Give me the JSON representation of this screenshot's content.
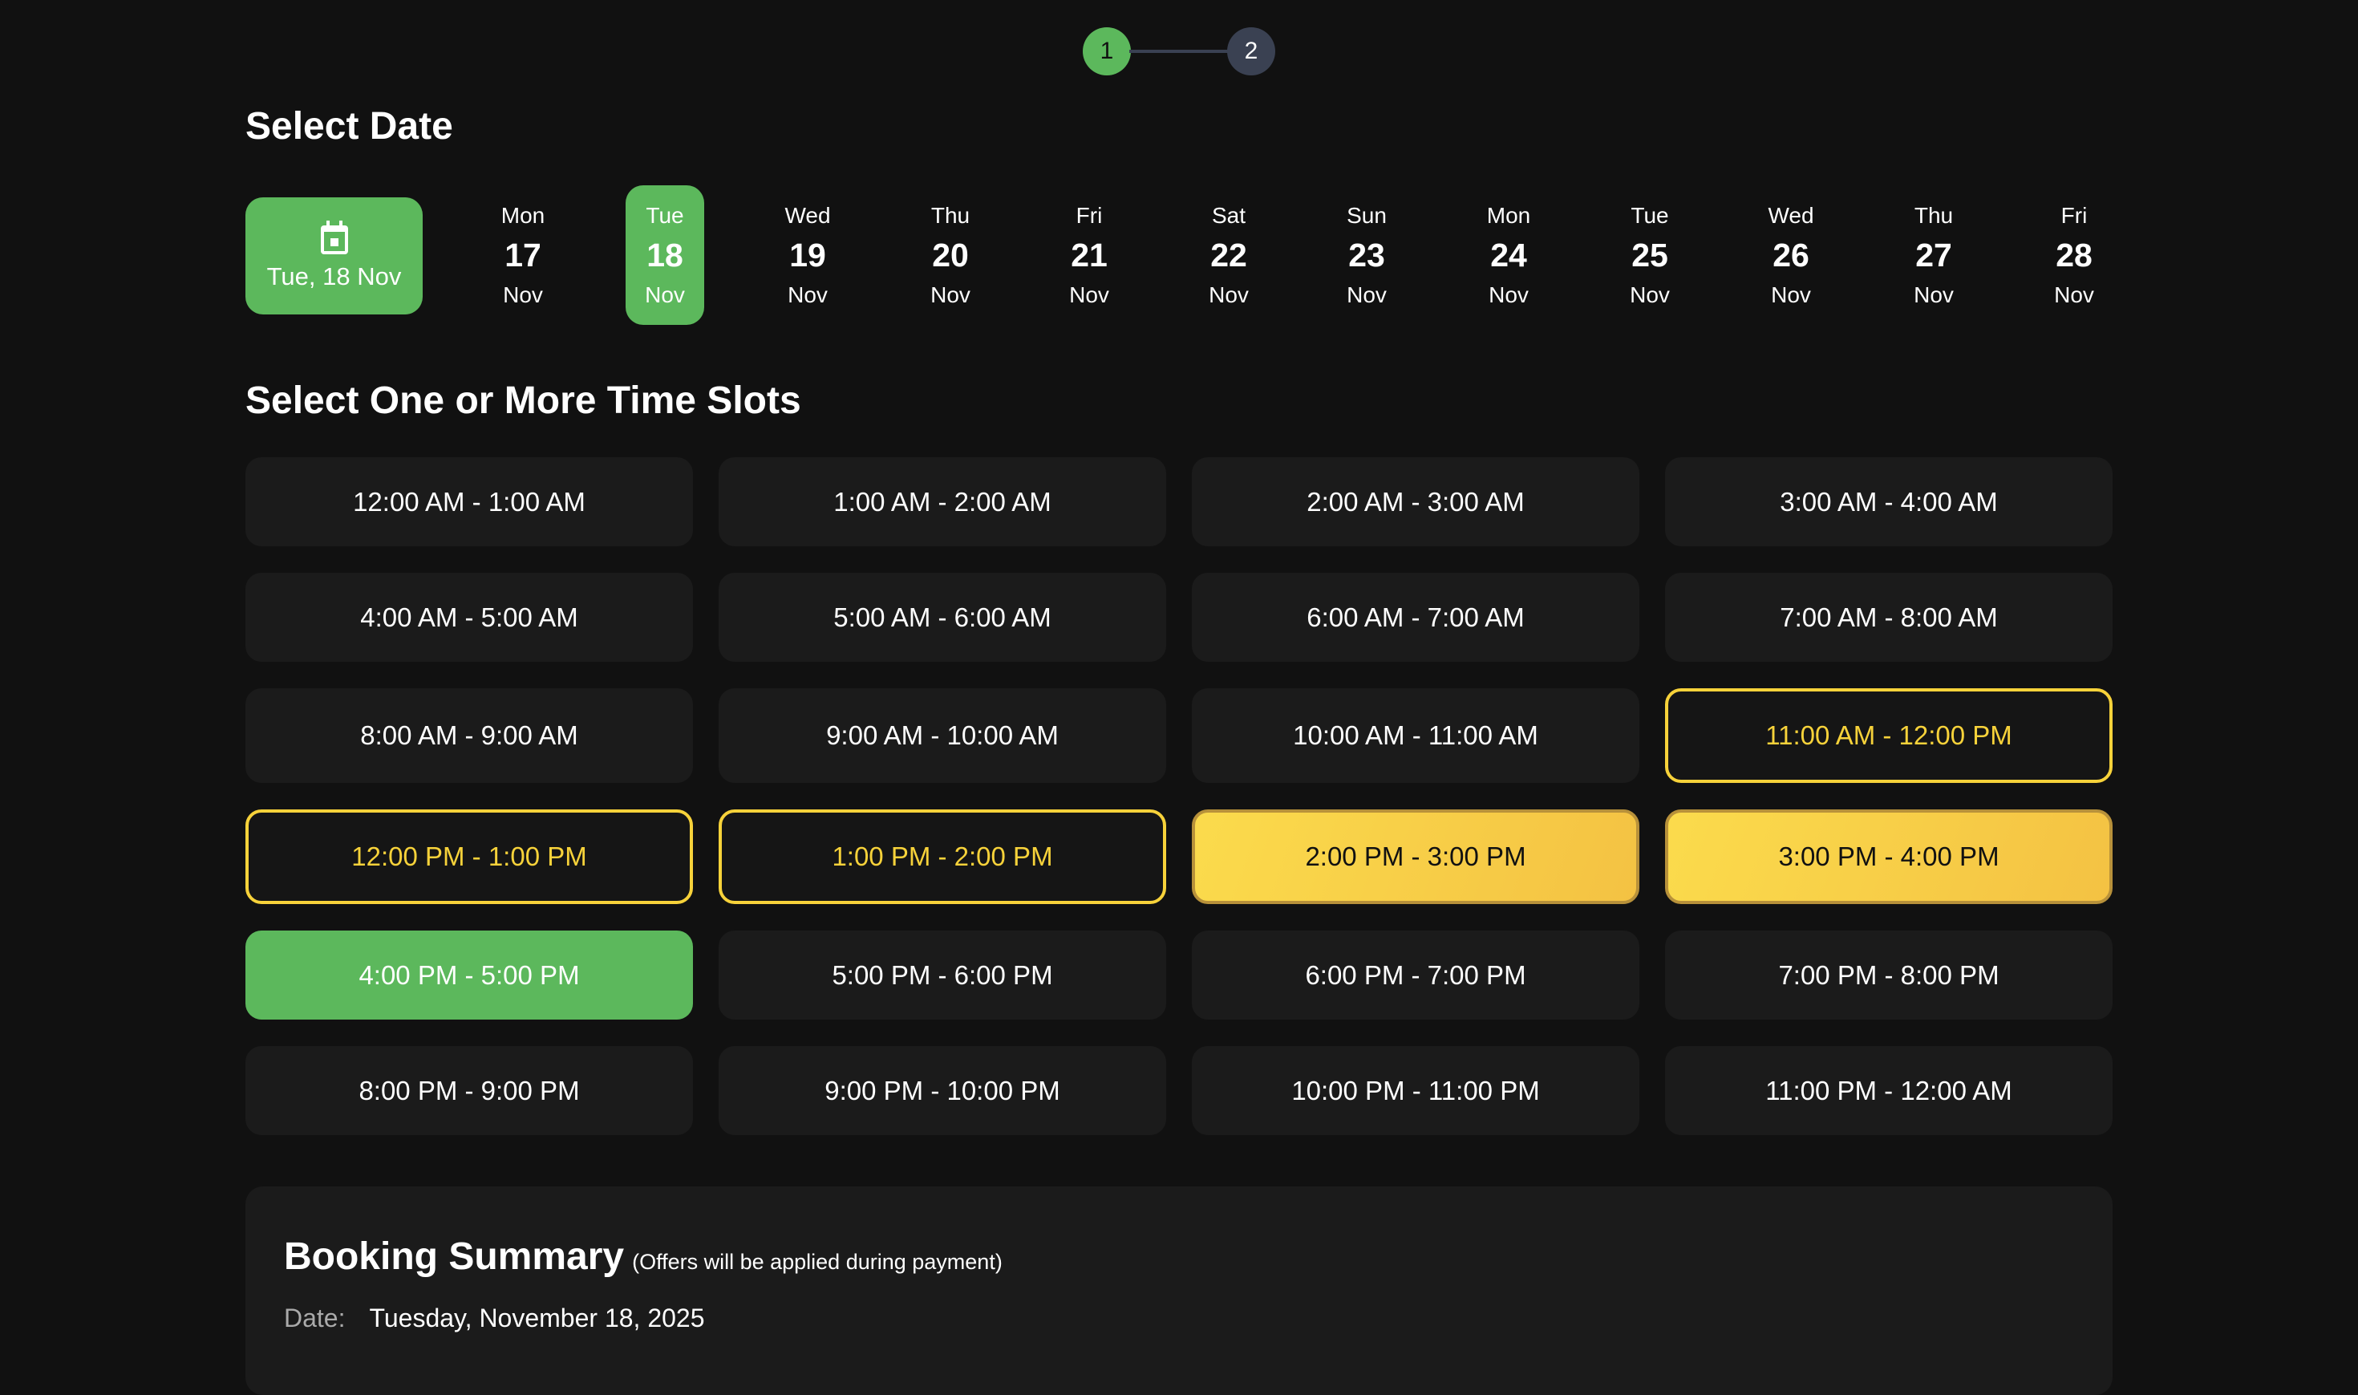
{
  "stepper": {
    "steps": [
      "1",
      "2"
    ],
    "active": 1
  },
  "select_date": {
    "title": "Select Date",
    "today_label": "Tue, 18 Nov",
    "today_icon": "calendar-icon",
    "dates": [
      {
        "day": "Mon",
        "num": "17",
        "month": "Nov"
      },
      {
        "day": "Tue",
        "num": "18",
        "month": "Nov",
        "selected": true
      },
      {
        "day": "Wed",
        "num": "19",
        "month": "Nov"
      },
      {
        "day": "Thu",
        "num": "20",
        "month": "Nov"
      },
      {
        "day": "Fri",
        "num": "21",
        "month": "Nov"
      },
      {
        "day": "Sat",
        "num": "22",
        "month": "Nov"
      },
      {
        "day": "Sun",
        "num": "23",
        "month": "Nov"
      },
      {
        "day": "Mon",
        "num": "24",
        "month": "Nov"
      },
      {
        "day": "Tue",
        "num": "25",
        "month": "Nov"
      },
      {
        "day": "Wed",
        "num": "26",
        "month": "Nov"
      },
      {
        "day": "Thu",
        "num": "27",
        "month": "Nov"
      },
      {
        "day": "Fri",
        "num": "28",
        "month": "Nov"
      }
    ]
  },
  "time_slots": {
    "title": "Select One or More Time Slots",
    "slots": [
      {
        "label": "12:00 AM - 1:00 AM",
        "state": "normal"
      },
      {
        "label": "1:00 AM - 2:00 AM",
        "state": "normal"
      },
      {
        "label": "2:00 AM - 3:00 AM",
        "state": "normal"
      },
      {
        "label": "3:00 AM - 4:00 AM",
        "state": "normal"
      },
      {
        "label": "4:00 AM - 5:00 AM",
        "state": "normal"
      },
      {
        "label": "5:00 AM - 6:00 AM",
        "state": "normal"
      },
      {
        "label": "6:00 AM - 7:00 AM",
        "state": "normal"
      },
      {
        "label": "7:00 AM - 8:00 AM",
        "state": "normal"
      },
      {
        "label": "8:00 AM - 9:00 AM",
        "state": "normal"
      },
      {
        "label": "9:00 AM - 10:00 AM",
        "state": "normal"
      },
      {
        "label": "10:00 AM - 11:00 AM",
        "state": "normal"
      },
      {
        "label": "11:00 AM - 12:00 PM",
        "state": "outline"
      },
      {
        "label": "12:00 PM - 1:00 PM",
        "state": "outline"
      },
      {
        "label": "1:00 PM - 2:00 PM",
        "state": "outline"
      },
      {
        "label": "2:00 PM - 3:00 PM",
        "state": "filled"
      },
      {
        "label": "3:00 PM - 4:00 PM",
        "state": "filled"
      },
      {
        "label": "4:00 PM - 5:00 PM",
        "state": "green"
      },
      {
        "label": "5:00 PM - 6:00 PM",
        "state": "normal"
      },
      {
        "label": "6:00 PM - 7:00 PM",
        "state": "normal"
      },
      {
        "label": "7:00 PM - 8:00 PM",
        "state": "normal"
      },
      {
        "label": "8:00 PM - 9:00 PM",
        "state": "normal"
      },
      {
        "label": "9:00 PM - 10:00 PM",
        "state": "normal"
      },
      {
        "label": "10:00 PM - 11:00 PM",
        "state": "normal"
      },
      {
        "label": "11:00 PM - 12:00 AM",
        "state": "normal"
      }
    ]
  },
  "summary": {
    "title": "Booking Summary",
    "note": "(Offers will be applied during payment)",
    "date_label": "Date:",
    "date_value": "Tuesday, November 18, 2025"
  },
  "colors": {
    "background": "#111111",
    "card": "#1b1b1b",
    "green": "#5cb85c",
    "yellow": "#f7d23a",
    "step_inactive": "#3a4152"
  }
}
